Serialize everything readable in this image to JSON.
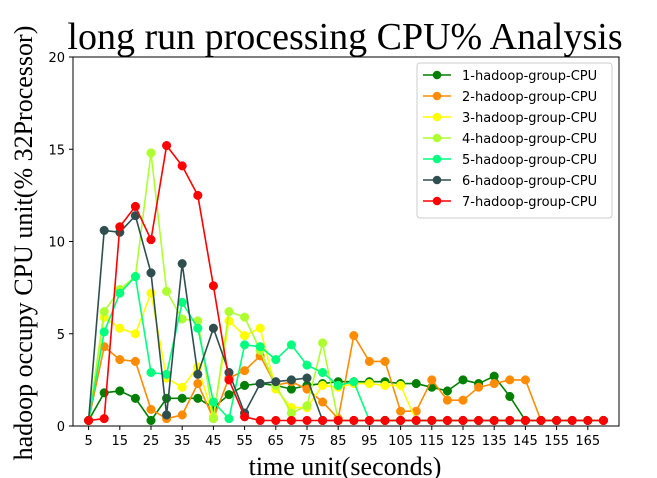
{
  "chart_data": {
    "type": "line",
    "title": "long run processing CPU% Analysis",
    "xlabel": "time unit(seconds)",
    "ylabel": "hadoop occupy CPU unit(% 32Processor)",
    "xlim": [
      0,
      175
    ],
    "ylim": [
      0,
      20
    ],
    "xticks": [
      5,
      15,
      25,
      35,
      45,
      55,
      65,
      75,
      85,
      95,
      105,
      115,
      125,
      135,
      145,
      155,
      165
    ],
    "yticks": [
      0,
      5,
      10,
      15,
      20
    ],
    "grid": false,
    "legend_position": "top-right",
    "x": [
      5,
      10,
      15,
      20,
      25,
      30,
      35,
      40,
      45,
      50,
      55,
      60,
      65,
      70,
      75,
      80,
      85,
      90,
      95,
      100,
      105,
      110,
      115,
      120,
      125,
      130,
      135,
      140,
      145,
      150,
      155,
      160,
      165,
      170
    ],
    "series": [
      {
        "name": "1-hadoop-group-CPU",
        "color": "#008000",
        "values": [
          0.3,
          1.8,
          1.9,
          1.5,
          0.3,
          1.5,
          1.5,
          1.5,
          1.0,
          1.7,
          2.2,
          2.3,
          2.2,
          2.0,
          2.2,
          2.3,
          2.4,
          2.4,
          2.4,
          2.4,
          2.3,
          2.3,
          2.1,
          1.9,
          2.5,
          2.3,
          2.7,
          1.6,
          0.3,
          0.3,
          0.3,
          0.3,
          0.3,
          0.3
        ]
      },
      {
        "name": "2-hadoop-group-CPU",
        "color": "#ff8c00",
        "values": [
          0.3,
          4.3,
          3.6,
          3.5,
          0.9,
          0.4,
          0.6,
          2.3,
          0.4,
          2.6,
          3.0,
          3.8,
          2.2,
          2.4,
          2.0,
          1.3,
          0.4,
          4.9,
          3.5,
          3.5,
          0.8,
          0.8,
          2.5,
          1.4,
          1.4,
          2.1,
          2.3,
          2.5,
          2.5,
          0.3,
          0.3,
          0.3,
          0.3,
          0.3
        ]
      },
      {
        "name": "3-hadoop-group-CPU",
        "color": "#ffff00",
        "values": [
          0.3,
          5.9,
          5.3,
          5.0,
          7.2,
          2.6,
          2.1,
          3.2,
          0.5,
          5.7,
          4.9,
          5.3,
          2.0,
          1.0,
          1.0,
          2.2,
          2.1,
          2.3,
          2.3,
          2.2,
          2.2,
          0.3,
          0.3,
          0.3,
          0.3,
          0.3,
          0.3,
          0.3,
          0.3,
          0.3,
          0.3,
          0.3,
          0.3,
          0.3
        ]
      },
      {
        "name": "4-hadoop-group-CPU",
        "color": "#adff2f",
        "values": [
          0.3,
          6.2,
          7.4,
          8.1,
          14.8,
          7.3,
          5.8,
          5.7,
          0.4,
          6.2,
          5.9,
          4.1,
          2.2,
          0.7,
          1.1,
          4.5,
          0.3,
          0.3,
          0.3,
          0.3,
          0.3,
          0.3,
          0.3,
          0.3,
          0.3,
          0.3,
          0.3,
          0.3,
          0.3,
          0.3,
          0.3,
          0.3,
          0.3,
          0.3
        ]
      },
      {
        "name": "5-hadoop-group-CPU",
        "color": "#00ff7f",
        "values": [
          0.3,
          5.1,
          7.2,
          8.1,
          2.9,
          2.8,
          6.7,
          5.3,
          1.3,
          0.4,
          4.4,
          4.3,
          3.6,
          4.4,
          3.3,
          2.9,
          2.2,
          2.4,
          0.3,
          0.3,
          0.3,
          0.3,
          0.3,
          0.3,
          0.3,
          0.3,
          0.3,
          0.3,
          0.3,
          0.3,
          0.3,
          0.3,
          0.3,
          0.3
        ]
      },
      {
        "name": "6-hadoop-group-CPU",
        "color": "#2f4f4f",
        "values": [
          0.3,
          10.6,
          10.5,
          11.4,
          8.3,
          0.6,
          8.8,
          2.8,
          5.3,
          2.9,
          0.7,
          2.3,
          2.4,
          2.5,
          2.6,
          0.3,
          0.3,
          0.3,
          0.3,
          0.3,
          0.3,
          0.3,
          0.3,
          0.3,
          0.3,
          0.3,
          0.3,
          0.3,
          0.3,
          0.3,
          0.3,
          0.3,
          0.3,
          0.3
        ]
      },
      {
        "name": "7-hadoop-group-CPU",
        "color": "#ff0000",
        "values": [
          0.3,
          0.4,
          10.8,
          11.9,
          10.1,
          15.2,
          14.1,
          12.5,
          7.6,
          2.5,
          0.5,
          0.3,
          0.3,
          0.3,
          0.3,
          0.3,
          0.3,
          0.3,
          0.3,
          0.3,
          0.3,
          0.3,
          0.3,
          0.3,
          0.3,
          0.3,
          0.3,
          0.3,
          0.3,
          0.3,
          0.3,
          0.3,
          0.3,
          0.3
        ]
      }
    ]
  }
}
